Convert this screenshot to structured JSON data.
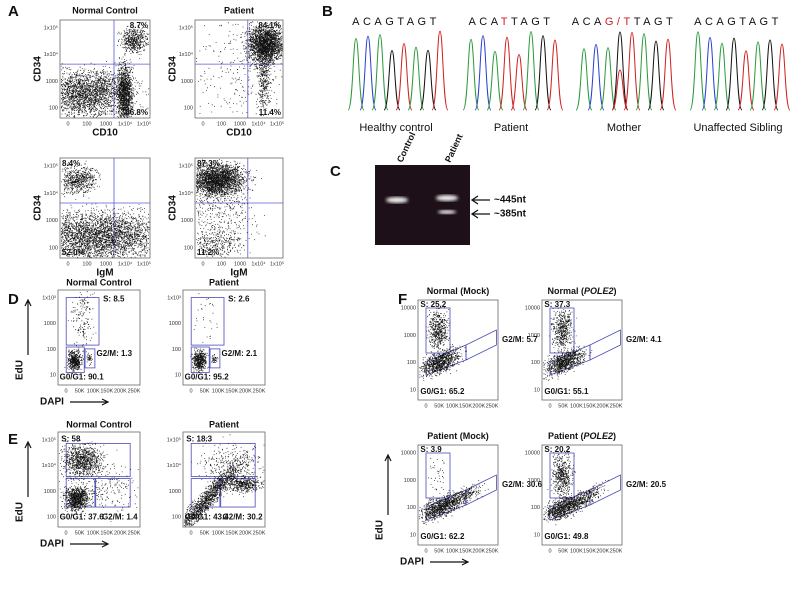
{
  "panel_labels": [
    "A",
    "B",
    "C",
    "D",
    "E",
    "F"
  ],
  "a": {
    "x_ticks": [
      "0",
      "100",
      "1000",
      "1x10⁴",
      "1x10⁵"
    ],
    "y_ticks": [
      "1x10⁵",
      "1x10⁴",
      "1000",
      "100"
    ],
    "plots": [
      {
        "title": "Normal Control",
        "y_label": "CD34",
        "x_label": "CD10",
        "gates": [
          "8.7%",
          "66.8%"
        ]
      },
      {
        "title": "Patient",
        "y_label": "CD34",
        "x_label": "CD10",
        "gates": [
          "84.1%",
          "11.4%"
        ]
      },
      {
        "y_label": "CD34",
        "x_label": "IgM",
        "gates": [
          "8.4%",
          "52.0%"
        ]
      },
      {
        "y_label": "CD34",
        "x_label": "IgM",
        "gates": [
          "87.3%",
          "11.2%"
        ]
      }
    ]
  },
  "b": {
    "sequences": [
      {
        "parts": [
          "ACAGTAGT"
        ],
        "caption": "Healthy control"
      },
      {
        "parts": [
          "ACA",
          "T",
          "TAGT"
        ],
        "caption": "Patient"
      },
      {
        "parts": [
          "ACA",
          "G/T",
          "TAGT"
        ],
        "caption": "Mother"
      },
      {
        "parts": [
          "ACAGTAGT"
        ],
        "caption": "Unaffected Sibling"
      }
    ]
  },
  "c": {
    "lanes": [
      "Control",
      "Patient"
    ],
    "bands": [
      "~445nt",
      "~385nt"
    ]
  },
  "d": {
    "y_label": "EdU",
    "x_label": "DAPI",
    "x_ticks": [
      "0",
      "50K",
      "100K",
      "150K",
      "200K",
      "250K"
    ],
    "y_ticks": [
      "1x10³",
      "1000",
      "100",
      "10"
    ],
    "plots": [
      {
        "title": "Normal Control",
        "s": "S: 8.5",
        "g2m": "G2/M: 1.3",
        "g0g1": "G0/G1: 90.1"
      },
      {
        "title": "Patient",
        "s": "S: 2.6",
        "g2m": "G2/M: 2.1",
        "g0g1": "G0/G1: 95.2"
      }
    ]
  },
  "e": {
    "y_label": "EdU",
    "x_label": "DAPI",
    "x_ticks": [
      "0",
      "50K",
      "100K",
      "150K",
      "200K",
      "250K"
    ],
    "y_ticks": [
      "1x10⁵",
      "1x10⁴",
      "1000",
      "100"
    ],
    "plots": [
      {
        "title": "Normal Control",
        "s": "S: 58",
        "g2m": "G2/M: 1.4",
        "g0g1": "G0/G1: 37.6"
      },
      {
        "title": "Patient",
        "s": "S: 18.3",
        "g2m": "G2/M: 30.2",
        "g0g1": "G0/G1: 43.4"
      }
    ]
  },
  "f": {
    "y_label": "EdU",
    "x_label": "DAPI",
    "x_ticks": [
      "0",
      "50K",
      "100K",
      "150K",
      "200K",
      "250K"
    ],
    "y_ticks": [
      "10000",
      "1000",
      "100",
      "10"
    ],
    "plots": [
      {
        "title": [
          "Normal (Mock)"
        ],
        "s": "S: 25.2",
        "g2m": "G2/M: 5.7",
        "g0g1": "G0/G1: 65.2"
      },
      {
        "title": [
          "Normal (",
          "POLE2",
          ")"
        ],
        "s": "S: 37.3",
        "g2m": "G2/M: 4.1",
        "g0g1": "G0/G1: 55.1"
      },
      {
        "title": [
          "Patient (Mock)"
        ],
        "s": "S: 3.9",
        "g2m": "G2/M: 30.6",
        "g0g1": "G0/G1: 62.2"
      },
      {
        "title": [
          "Patient (",
          "POLE2",
          ")"
        ],
        "s": "S: 20.2",
        "g2m": "G2/M: 20.5",
        "g0g1": "G0/G1: 49.8"
      }
    ]
  }
}
